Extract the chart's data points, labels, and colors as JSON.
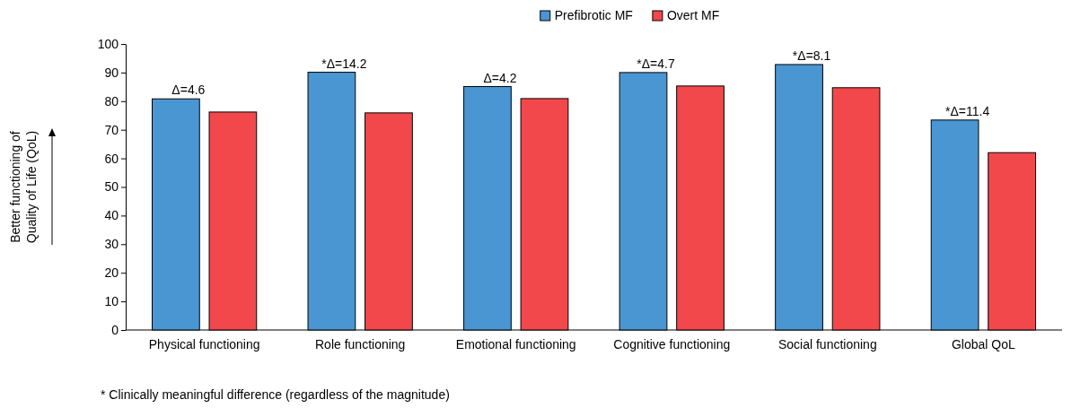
{
  "chart_data": {
    "type": "bar",
    "ylabel": "Better functioning of\nQuality of Life (QoL)",
    "categories": [
      "Physical functioning",
      "Role functioning",
      "Emotional functioning",
      "Cognitive functioning",
      "Social functioning",
      "Global QoL"
    ],
    "series": [
      {
        "name": "Prefibrotic MF",
        "color": "#4a96d2",
        "values": [
          80.8,
          90.1,
          85.1,
          90.0,
          92.8,
          73.4
        ]
      },
      {
        "name": "Overt MF",
        "color": "#f2484b",
        "values": [
          76.2,
          75.9,
          80.9,
          85.3,
          84.7,
          62.0
        ]
      }
    ],
    "ylim": [
      0,
      100
    ],
    "yticks": [
      0,
      10,
      20,
      30,
      40,
      50,
      60,
      70,
      80,
      90,
      100
    ],
    "legend": "top",
    "grid": false,
    "annotations": [
      "Δ=4.6",
      "*Δ=14.2",
      "Δ=4.2",
      "*Δ=4.7",
      "*Δ=8.1",
      "*Δ=11.4",
      "* Clinically meaningful difference (regardless of the magnitude)"
    ]
  }
}
